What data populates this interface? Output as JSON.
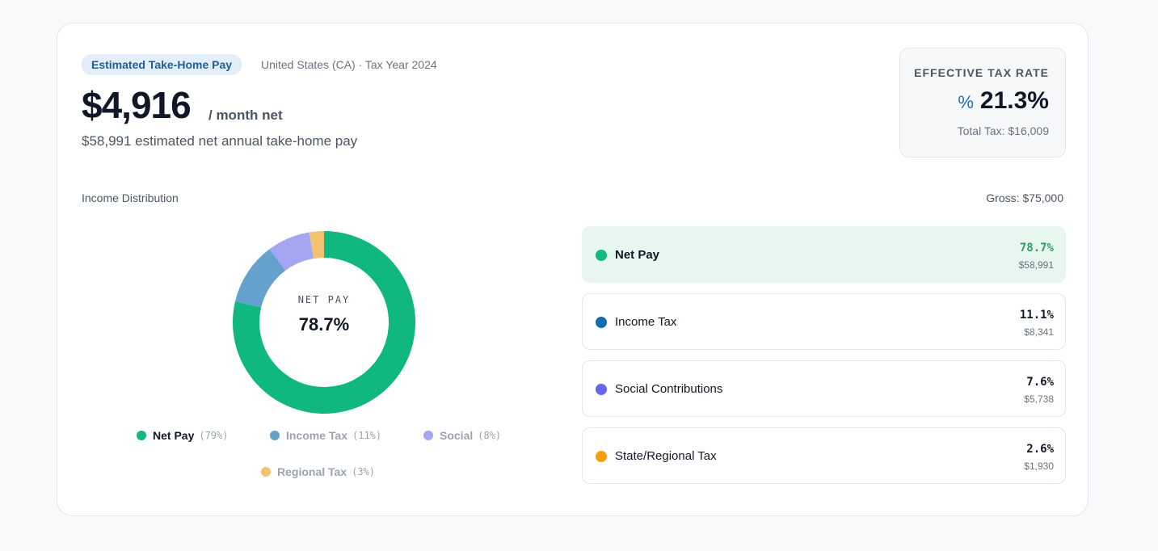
{
  "header": {
    "badge": "Estimated Take-Home Pay",
    "location": "United States (CA) · Tax Year 2024",
    "monthly": "$4,916",
    "monthly_unit": "/ month net",
    "annual": "$58,991 estimated net annual take-home pay"
  },
  "tax_rate": {
    "title": "EFFECTIVE TAX RATE",
    "icon": "%",
    "value": "21.3%",
    "total": "Total Tax: $16,009"
  },
  "distribution": {
    "title": "Income Distribution",
    "gross": "Gross: $75,000"
  },
  "chart_data": {
    "type": "pie",
    "center_label": "NET PAY",
    "center_value": "78.7%",
    "categories": [
      "Net Pay",
      "Income Tax",
      "Social",
      "Regional Tax"
    ],
    "values": [
      78.7,
      11.1,
      7.6,
      2.6
    ],
    "value_labels": [
      "(79%)",
      "(11%)",
      "(8%)",
      "(3%)"
    ],
    "colors": [
      "#10b77f",
      "#64a1cc",
      "#a5a6f3",
      "#f2c26e"
    ]
  },
  "breakdown": [
    {
      "name": "Net Pay",
      "percent": "78.7%",
      "amount": "$58,991",
      "color": "#10b981"
    },
    {
      "name": "Income Tax",
      "percent": "11.1%",
      "amount": "$8,341",
      "color": "#0e6fb0"
    },
    {
      "name": "Social Contributions",
      "percent": "7.6%",
      "amount": "$5,738",
      "color": "#6366f1"
    },
    {
      "name": "State/Regional Tax",
      "percent": "2.6%",
      "amount": "$1,930",
      "color": "#f59e0b"
    }
  ]
}
